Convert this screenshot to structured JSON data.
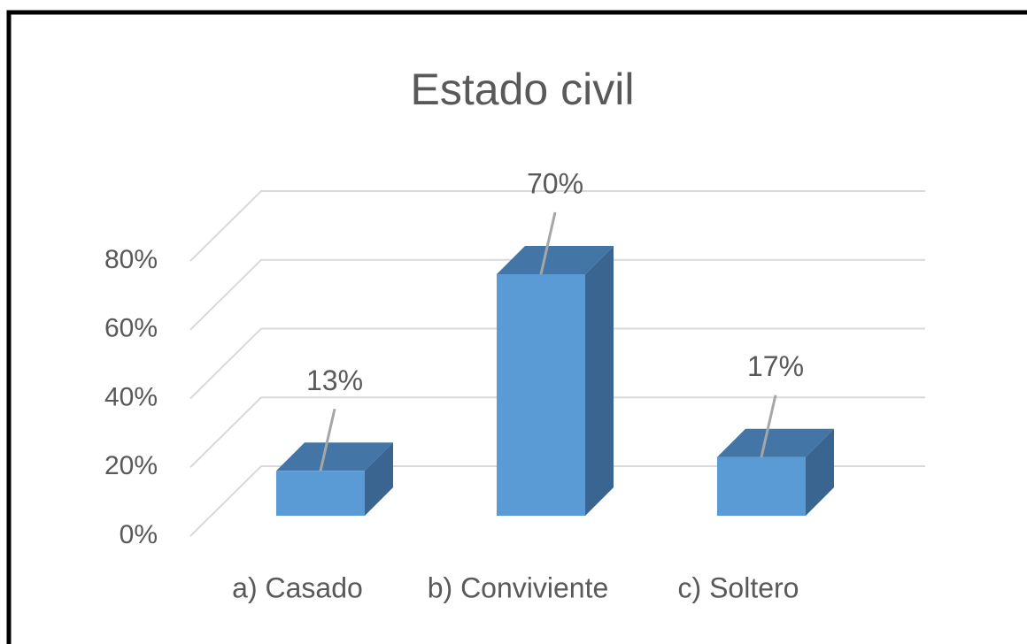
{
  "chart_data": {
    "type": "bar3d",
    "title": "Estado civil",
    "categories": [
      "a) Casado",
      "b) Conviviente",
      "c) Soltero"
    ],
    "values": [
      13,
      70,
      17
    ],
    "value_labels": [
      "13%",
      "70%",
      "17%"
    ],
    "color": "#5b9bd5",
    "ylim": [
      0,
      80
    ],
    "yticks": [
      {
        "value": 0,
        "label": "0%"
      },
      {
        "value": 20,
        "label": "20%"
      },
      {
        "value": 40,
        "label": "40%"
      },
      {
        "value": 60,
        "label": "60%"
      },
      {
        "value": 80,
        "label": "80%"
      }
    ],
    "grid": true
  }
}
